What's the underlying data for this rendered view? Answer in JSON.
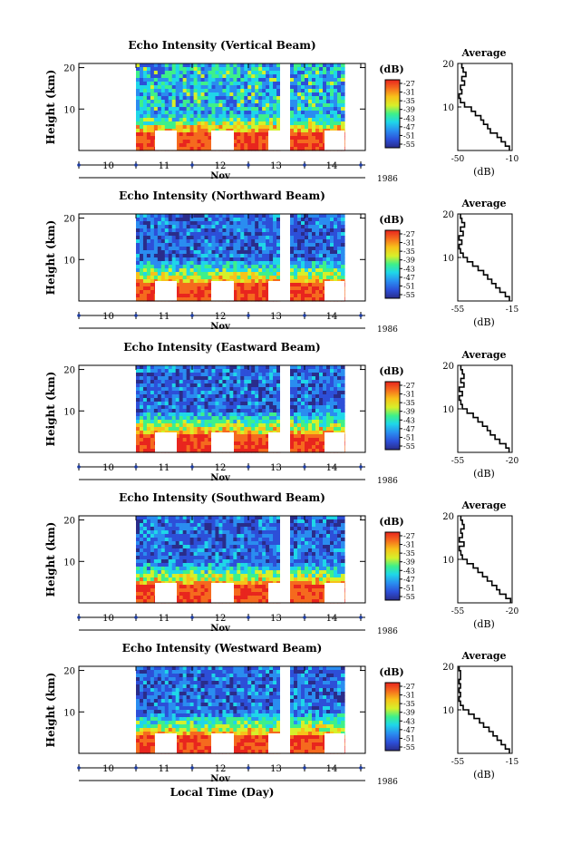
{
  "figure": {
    "xlabel": "Local Time (Day)"
  },
  "chart_data": [
    {
      "type": "heatmap",
      "title": "Echo Intensity (Vertical Beam)",
      "ylabel": "Height (km)",
      "yticks": [
        10,
        20
      ],
      "ylim": [
        0,
        21
      ],
      "xticks": [
        "10",
        "11",
        "12",
        "13",
        "14"
      ],
      "month": "Nov",
      "year": "1986",
      "colorbar": {
        "unit": "(dB)",
        "ticks": [
          -27,
          -31,
          -35,
          -39,
          -43,
          -47,
          -51,
          -55
        ]
      },
      "average": {
        "title": "Average",
        "xlabel": "(dB)",
        "xticks": [
          -50,
          -10
        ],
        "yticks": [
          10,
          20
        ],
        "height": [
          1,
          2,
          3,
          4,
          5,
          6,
          7,
          8,
          9,
          10,
          11,
          12,
          13,
          14,
          15,
          16,
          17,
          18,
          19,
          20
        ],
        "value": [
          -12,
          -15,
          -18,
          -21,
          -26,
          -28,
          -31,
          -33,
          -37,
          -40,
          -45,
          -48,
          -49,
          -47,
          -48,
          -45,
          -47,
          -44,
          -46,
          -47
        ]
      }
    },
    {
      "type": "heatmap",
      "title": "Echo Intensity (Northward Beam)",
      "ylabel": "Height (km)",
      "yticks": [
        10,
        20
      ],
      "ylim": [
        0,
        21
      ],
      "xticks": [
        "10",
        "11",
        "12",
        "13",
        "14"
      ],
      "month": "Nov",
      "year": "1986",
      "colorbar": {
        "unit": "(dB)",
        "ticks": [
          -27,
          -31,
          -35,
          -39,
          -43,
          -47,
          -51,
          -55
        ]
      },
      "average": {
        "title": "Average",
        "xlabel": "(dB)",
        "xticks": [
          -55,
          -15
        ],
        "yticks": [
          10,
          20
        ],
        "height": [
          1,
          2,
          3,
          4,
          5,
          6,
          7,
          8,
          9,
          10,
          11,
          12,
          13,
          14,
          15,
          16,
          17,
          18,
          19,
          20
        ],
        "value": [
          -17,
          -20,
          -24,
          -27,
          -30,
          -33,
          -36,
          -40,
          -44,
          -48,
          -51,
          -53,
          -54,
          -52,
          -54,
          -51,
          -53,
          -50,
          -52,
          -53
        ]
      }
    },
    {
      "type": "heatmap",
      "title": "Echo Intensity (Eastward Beam)",
      "ylabel": "Height (km)",
      "yticks": [
        10,
        20
      ],
      "ylim": [
        0,
        21
      ],
      "xticks": [
        "10",
        "11",
        "12",
        "13",
        "14"
      ],
      "month": "Nov",
      "year": "1986",
      "colorbar": {
        "unit": "(dB)",
        "ticks": [
          -27,
          -31,
          -35,
          -39,
          -43,
          -47,
          -51,
          -55
        ]
      },
      "average": {
        "title": "Average",
        "xlabel": "(dB)",
        "xticks": [
          -55,
          -20
        ],
        "yticks": [
          10,
          20
        ],
        "height": [
          1,
          2,
          3,
          4,
          5,
          6,
          7,
          8,
          9,
          10,
          11,
          12,
          13,
          14,
          15,
          16,
          17,
          18,
          19,
          20
        ],
        "value": [
          -22,
          -24,
          -28,
          -31,
          -34,
          -36,
          -39,
          -42,
          -45,
          -49,
          -52,
          -53,
          -54,
          -52,
          -54,
          -51,
          -53,
          -51,
          -52,
          -53
        ]
      }
    },
    {
      "type": "heatmap",
      "title": "Echo Intensity (Southward Beam)",
      "ylabel": "Height (km)",
      "yticks": [
        10,
        20
      ],
      "ylim": [
        0,
        21
      ],
      "xticks": [
        "10",
        "11",
        "12",
        "13",
        "14"
      ],
      "month": "Nov",
      "year": "1986",
      "colorbar": {
        "unit": "(dB)",
        "ticks": [
          -27,
          -31,
          -35,
          -39,
          -43,
          -47,
          -51,
          -55
        ]
      },
      "average": {
        "title": "Average",
        "xlabel": "(dB)",
        "xticks": [
          -55,
          -20
        ],
        "yticks": [
          10,
          20
        ],
        "height": [
          1,
          2,
          3,
          4,
          5,
          6,
          7,
          8,
          9,
          10,
          11,
          12,
          13,
          14,
          15,
          16,
          17,
          18,
          19,
          20
        ],
        "value": [
          -21,
          -24,
          -28,
          -30,
          -33,
          -36,
          -39,
          -42,
          -45,
          -49,
          -52,
          -53,
          -54,
          -51,
          -54,
          -52,
          -53,
          -51,
          -52,
          -53
        ]
      }
    },
    {
      "type": "heatmap",
      "title": "Echo Intensity (Westward Beam)",
      "ylabel": "Height (km)",
      "yticks": [
        10,
        20
      ],
      "ylim": [
        0,
        21
      ],
      "xticks": [
        "10",
        "11",
        "12",
        "13",
        "14"
      ],
      "month": "Nov",
      "year": "1986",
      "colorbar": {
        "unit": "(dB)",
        "ticks": [
          -27,
          -31,
          -35,
          -39,
          -43,
          -47,
          -51,
          -55
        ]
      },
      "average": {
        "title": "Average",
        "xlabel": "(dB)",
        "xticks": [
          -55,
          -15
        ],
        "yticks": [
          10,
          20
        ],
        "height": [
          1,
          2,
          3,
          4,
          5,
          6,
          7,
          8,
          9,
          10,
          11,
          12,
          13,
          14,
          15,
          16,
          17,
          18,
          19,
          20
        ],
        "value": [
          -17,
          -20,
          -23,
          -26,
          -29,
          -32,
          -36,
          -39,
          -43,
          -47,
          -51,
          -53,
          -54,
          -53,
          -54,
          -53,
          -54,
          -53,
          -53,
          -54
        ]
      }
    }
  ]
}
